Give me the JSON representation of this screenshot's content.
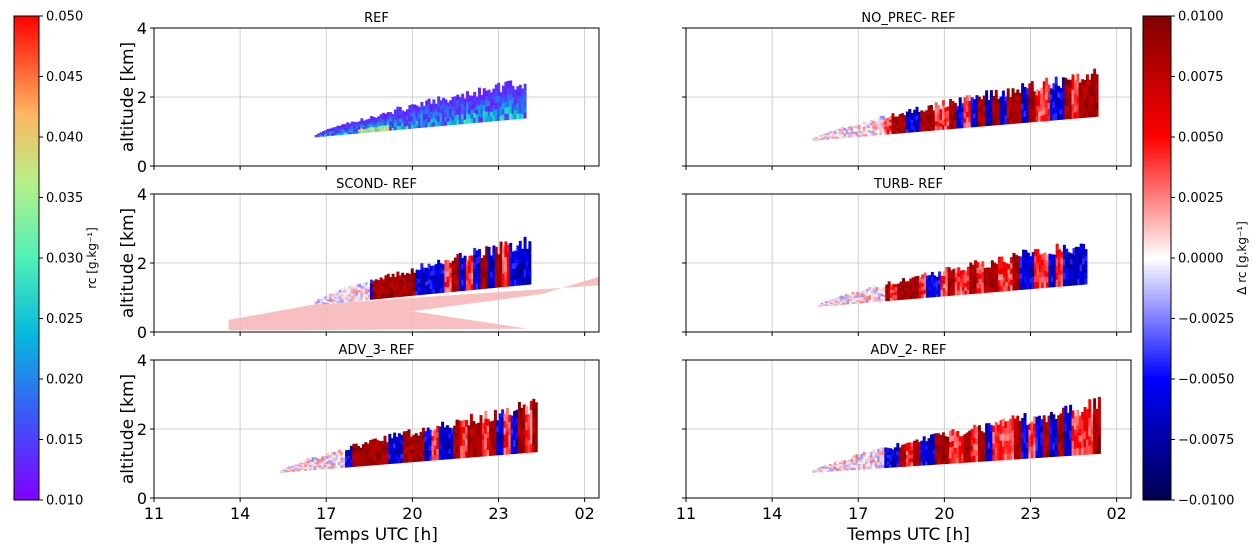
{
  "chart_data": {
    "type": "heatmap",
    "x_axis": {
      "label": "Temps UTC [h]",
      "tick_labels": [
        "11",
        "14",
        "17",
        "20",
        "23",
        "02"
      ],
      "range_h": [
        11,
        26.5
      ]
    },
    "y_axis": {
      "label": "altitude [km]",
      "tick_labels": [
        "0",
        "2",
        "4"
      ],
      "range_km": [
        0,
        4
      ]
    },
    "grid": true,
    "panels": [
      {
        "id": "REF",
        "title": "REF",
        "column": "left",
        "row": 0,
        "colormap": "rainbow",
        "kind": "absolute",
        "envelope": {
          "start_h": 16.6,
          "end_h": 24.0,
          "base_start_km": 0.85,
          "base_end_km": 1.4,
          "top_start_km": 0.9,
          "top_end_km": 2.5
        }
      },
      {
        "id": "NO_PREC",
        "title": "NO_PREC- REF",
        "column": "right",
        "row": 0,
        "colormap": "seismic",
        "kind": "difference",
        "envelope": {
          "start_h": 15.4,
          "end_h": 25.4,
          "base_start_km": 0.75,
          "base_end_km": 1.45,
          "top_start_km": 0.8,
          "top_end_km": 2.7
        }
      },
      {
        "id": "SCOND",
        "title": "SCOND- REF",
        "column": "left",
        "row": 1,
        "colormap": "seismic",
        "kind": "difference",
        "envelope": {
          "start_h": 16.6,
          "end_h": 24.2,
          "base_start_km": 0.8,
          "base_end_km": 1.4,
          "top_start_km": 0.9,
          "top_end_km": 2.7
        }
      },
      {
        "id": "TURB",
        "title": "TURB- REF",
        "column": "right",
        "row": 1,
        "colormap": "seismic",
        "kind": "difference",
        "envelope": {
          "start_h": 15.6,
          "end_h": 25.0,
          "base_start_km": 0.75,
          "base_end_km": 1.4,
          "top_start_km": 0.8,
          "top_end_km": 2.6
        }
      },
      {
        "id": "ADV_3",
        "title": "ADV_3- REF",
        "column": "left",
        "row": 2,
        "colormap": "seismic",
        "kind": "difference",
        "envelope": {
          "start_h": 15.4,
          "end_h": 24.4,
          "base_start_km": 0.75,
          "base_end_km": 1.35,
          "top_start_km": 0.8,
          "top_end_km": 2.75
        }
      },
      {
        "id": "ADV_2",
        "title": "ADV_2- REF",
        "column": "right",
        "row": 2,
        "colormap": "seismic",
        "kind": "difference",
        "envelope": {
          "start_h": 15.4,
          "end_h": 25.5,
          "base_start_km": 0.75,
          "base_end_km": 1.3,
          "top_start_km": 0.8,
          "top_end_km": 2.75
        }
      }
    ],
    "colorbars": [
      {
        "id": "rc",
        "label": "rc [g.kg⁻¹]",
        "colormap": "rainbow",
        "tick_labels": [
          "0.050",
          "0.045",
          "0.040",
          "0.035",
          "0.030",
          "0.025",
          "0.020",
          "0.015",
          "0.010"
        ],
        "range": [
          0.01,
          0.05
        ]
      },
      {
        "id": "delta_rc",
        "label": "Δ rc [g.kg⁻¹]",
        "colormap": "seismic",
        "tick_labels": [
          "0.0100",
          "0.0075",
          "0.0050",
          "0.0025",
          "0.0000",
          "−0.0025",
          "−0.0050",
          "−0.0075",
          "−0.0100"
        ],
        "range": [
          -0.01,
          0.01
        ]
      }
    ]
  }
}
